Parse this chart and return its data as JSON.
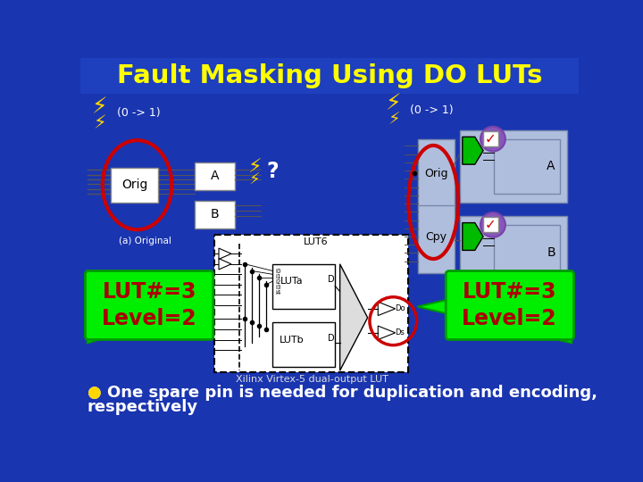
{
  "title": "Fault Masking Using DO LUTs",
  "title_color": "#FFFF00",
  "bg_color": "#1a35b0",
  "border_color": "#4060cc",
  "fault_label": "(0 -> 1)",
  "fault_label2": "(0 -> 1)",
  "lut_label1": "LUT#=3\nLevel=2",
  "lut_label2": "LUT#=3\nLevel=2",
  "lut_bg": "#00ee00",
  "lut_text_color": "#aa0000",
  "bottom_bullet_color": "#FFD700",
  "bottom_text1": "● One spare pin is needed for duplication and encoding,",
  "bottom_text2": "respectively",
  "bottom_text_color": "#ffffff",
  "xilinx_label": "Xilinx Virtex-5 dual-output LUT",
  "xilinx_label_color": "#dddddd",
  "orig_label": "Orig",
  "b_label": "B",
  "a_label": "A",
  "cpy_label": "Cpy",
  "block_bg": "#b0bedd",
  "diagram_bg": "#ffffff",
  "green_arrow": "#00ee00",
  "green_arrow_edge": "#009900"
}
